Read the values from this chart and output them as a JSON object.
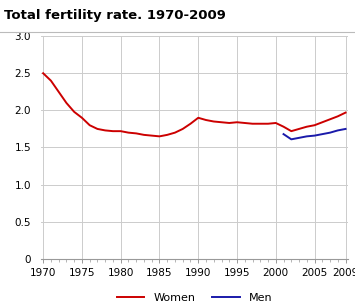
{
  "title": "Total fertility rate. 1970-2009",
  "women_years": [
    1970,
    1971,
    1972,
    1973,
    1974,
    1975,
    1976,
    1977,
    1978,
    1979,
    1980,
    1981,
    1982,
    1983,
    1984,
    1985,
    1986,
    1987,
    1988,
    1989,
    1990,
    1991,
    1992,
    1993,
    1994,
    1995,
    1996,
    1997,
    1998,
    1999,
    2000,
    2001,
    2002,
    2003,
    2004,
    2005,
    2006,
    2007,
    2008,
    2009
  ],
  "women_values": [
    2.5,
    2.4,
    2.25,
    2.1,
    1.98,
    1.9,
    1.8,
    1.75,
    1.73,
    1.72,
    1.72,
    1.7,
    1.69,
    1.67,
    1.66,
    1.65,
    1.67,
    1.7,
    1.75,
    1.82,
    1.9,
    1.87,
    1.85,
    1.84,
    1.83,
    1.84,
    1.83,
    1.82,
    1.82,
    1.82,
    1.83,
    1.78,
    1.72,
    1.75,
    1.78,
    1.8,
    1.84,
    1.88,
    1.92,
    1.97
  ],
  "men_years": [
    2001,
    2002,
    2003,
    2004,
    2005,
    2006,
    2007,
    2008,
    2009
  ],
  "men_values": [
    1.68,
    1.61,
    1.63,
    1.65,
    1.66,
    1.68,
    1.7,
    1.73,
    1.75
  ],
  "women_color": "#cc0000",
  "men_color": "#1a1aaa",
  "line_width": 1.4,
  "xlim_min": 1970,
  "xlim_max": 2009,
  "ylim_min": 0,
  "ylim_max": 3.0,
  "yticks": [
    0,
    0.5,
    1.0,
    1.5,
    2.0,
    2.5,
    3.0
  ],
  "ytick_labels": [
    "0",
    "0.5",
    "1.0",
    "1.5",
    "2.0",
    "2.5",
    "3.0"
  ],
  "xticks": [
    1970,
    1975,
    1980,
    1985,
    1990,
    1995,
    2000,
    2005,
    2009
  ],
  "grid_color": "#cccccc",
  "background_color": "#ffffff",
  "title_fontsize": 9.5,
  "tick_fontsize": 7.5,
  "legend_fontsize": 8
}
